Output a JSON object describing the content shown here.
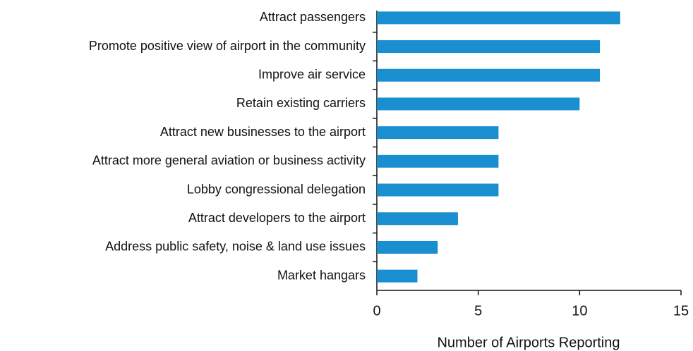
{
  "chart_data": {
    "type": "bar",
    "orientation": "horizontal",
    "xlabel": "Number of Airports Reporting",
    "categories": [
      "Attract passengers",
      "Promote positive view of airport in the community",
      "Improve air service",
      "Retain existing carriers",
      "Attract new businesses to the airport",
      "Attract more general aviation or business activity",
      "Lobby congressional delegation",
      "Attract developers to the airport",
      "Address public safety, noise & land use issues",
      "Market hangars"
    ],
    "values": [
      12,
      11,
      11,
      10,
      6,
      6,
      6,
      4,
      3,
      2
    ],
    "color": "#1a8fd0",
    "xlim": [
      0,
      15
    ],
    "xticks": [
      0,
      5,
      10,
      15
    ],
    "grid": false
  }
}
